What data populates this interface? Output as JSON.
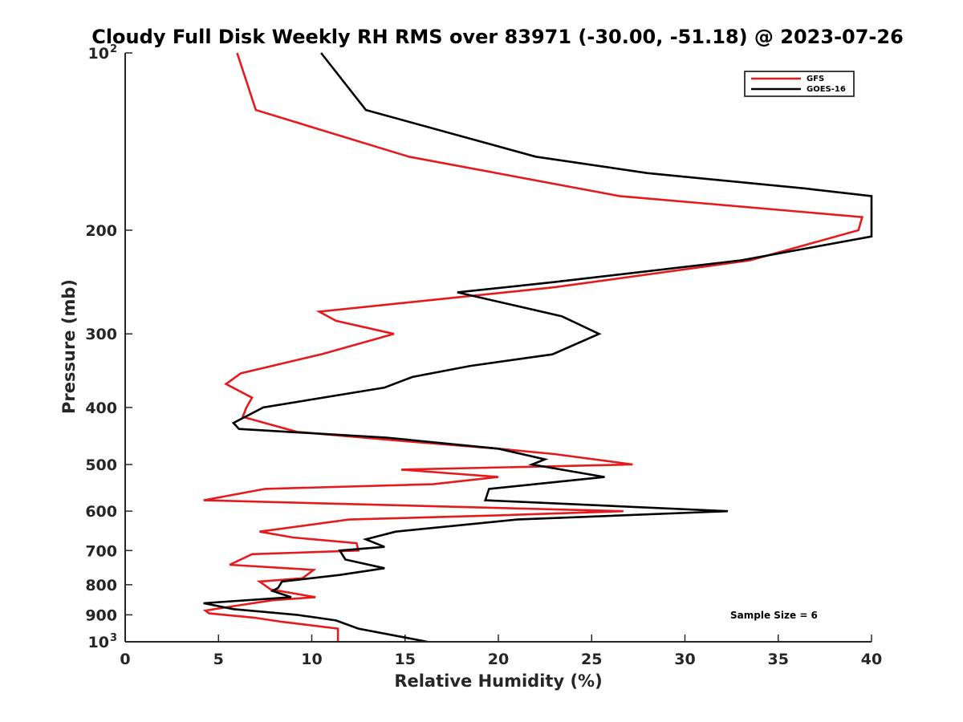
{
  "chart_data": {
    "type": "line",
    "title": "Cloudy Full Disk Weekly RH RMS over 83971 (-30.00, -51.18) @ 2023-07-26",
    "xlabel": "Relative Humidity (%)",
    "ylabel": "Pressure (mb)",
    "xlim": [
      0,
      40
    ],
    "ylim": [
      1000,
      100
    ],
    "yscale": "log",
    "y_reversed": true,
    "grid": false,
    "legend_position": "top-right",
    "x_ticks": [
      "0",
      "5",
      "10",
      "15",
      "20",
      "25",
      "30",
      "35",
      "40"
    ],
    "y_ticks": [
      {
        "value": 100,
        "label": "10",
        "sup": "2"
      },
      {
        "value": 200,
        "label": "200",
        "sup": ""
      },
      {
        "value": 300,
        "label": "300",
        "sup": ""
      },
      {
        "value": 400,
        "label": "400",
        "sup": ""
      },
      {
        "value": 500,
        "label": "500",
        "sup": ""
      },
      {
        "value": 600,
        "label": "600",
        "sup": ""
      },
      {
        "value": 700,
        "label": "700",
        "sup": ""
      },
      {
        "value": 800,
        "label": "800",
        "sup": ""
      },
      {
        "value": 900,
        "label": "900",
        "sup": ""
      },
      {
        "value": 1000,
        "label": "10",
        "sup": "3"
      }
    ],
    "series": [
      {
        "name": "GFS",
        "color": "#e41a1c",
        "points": [
          [
            6.0,
            100
          ],
          [
            7.0,
            125
          ],
          [
            15.2,
            150
          ],
          [
            26.5,
            175
          ],
          [
            39.5,
            190
          ],
          [
            39.3,
            200
          ],
          [
            33.5,
            225
          ],
          [
            23.0,
            250
          ],
          [
            10.4,
            275
          ],
          [
            11.3,
            285
          ],
          [
            14.4,
            300
          ],
          [
            10.5,
            325
          ],
          [
            6.2,
            350
          ],
          [
            5.4,
            365
          ],
          [
            6.8,
            385
          ],
          [
            6.5,
            400
          ],
          [
            6.3,
            415
          ],
          [
            9.2,
            440
          ],
          [
            14.5,
            455
          ],
          [
            20.0,
            470
          ],
          [
            23.0,
            480
          ],
          [
            27.2,
            500
          ],
          [
            14.8,
            510
          ],
          [
            20.0,
            525
          ],
          [
            16.5,
            540
          ],
          [
            7.5,
            550
          ],
          [
            4.2,
            575
          ],
          [
            26.7,
            600
          ],
          [
            20.0,
            610
          ],
          [
            12.0,
            620
          ],
          [
            7.2,
            650
          ],
          [
            9.0,
            665
          ],
          [
            12.4,
            680
          ],
          [
            12.5,
            700
          ],
          [
            6.8,
            710
          ],
          [
            5.6,
            740
          ],
          [
            10.1,
            755
          ],
          [
            9.5,
            780
          ],
          [
            7.2,
            790
          ],
          [
            7.8,
            815
          ],
          [
            10.2,
            840
          ],
          [
            7.9,
            850
          ],
          [
            5.8,
            870
          ],
          [
            4.3,
            885
          ],
          [
            4.5,
            895
          ],
          [
            6.9,
            910
          ],
          [
            8.4,
            925
          ],
          [
            11.4,
            950
          ],
          [
            11.4,
            1000
          ]
        ]
      },
      {
        "name": "GOES-16",
        "color": "#000000",
        "points": [
          [
            10.5,
            100
          ],
          [
            12.9,
            125
          ],
          [
            22.0,
            150
          ],
          [
            28.0,
            160
          ],
          [
            36.5,
            170
          ],
          [
            40.0,
            175
          ],
          [
            40.0,
            205
          ],
          [
            33.0,
            225
          ],
          [
            23.0,
            245
          ],
          [
            17.8,
            255
          ],
          [
            23.4,
            280
          ],
          [
            25.4,
            300
          ],
          [
            22.9,
            325
          ],
          [
            18.5,
            340
          ],
          [
            15.4,
            355
          ],
          [
            13.9,
            370
          ],
          [
            7.4,
            400
          ],
          [
            5.8,
            425
          ],
          [
            6.1,
            435
          ],
          [
            14.0,
            450
          ],
          [
            20.0,
            470
          ],
          [
            22.5,
            490
          ],
          [
            21.8,
            500
          ],
          [
            25.7,
            525
          ],
          [
            19.5,
            550
          ],
          [
            19.3,
            575
          ],
          [
            32.3,
            600
          ],
          [
            21.0,
            620
          ],
          [
            14.5,
            650
          ],
          [
            12.9,
            670
          ],
          [
            13.9,
            690
          ],
          [
            11.5,
            700
          ],
          [
            11.8,
            725
          ],
          [
            13.9,
            750
          ],
          [
            11.5,
            770
          ],
          [
            8.4,
            790
          ],
          [
            8.2,
            810
          ],
          [
            7.9,
            820
          ],
          [
            8.9,
            840
          ],
          [
            4.2,
            860
          ],
          [
            5.8,
            880
          ],
          [
            9.2,
            900
          ],
          [
            11.3,
            920
          ],
          [
            12.5,
            950
          ],
          [
            16.2,
            1000
          ]
        ]
      }
    ],
    "annotations": [
      "Sample Size = 6"
    ]
  }
}
